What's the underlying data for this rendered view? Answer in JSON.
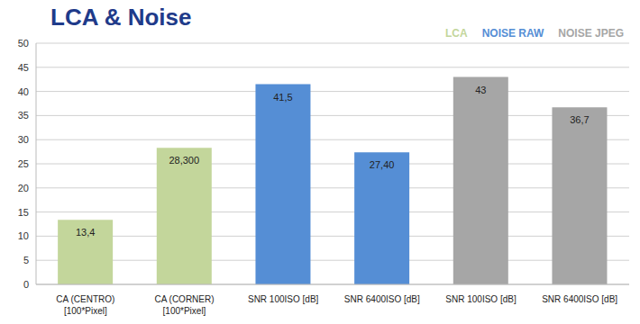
{
  "chart_data": {
    "type": "bar",
    "title": "LCA & Noise",
    "categories": [
      "CA (CENTRO)\n[100*Pixel]",
      "CA (CORNER)\n[100*Pixel]",
      "SNR 100ISO [dB]",
      "SNR 6400ISO [dB]",
      "SNR 100ISO [dB]",
      "SNR 6400ISO [dB]"
    ],
    "series": [
      {
        "name": "LCA",
        "color": "#c3d69b",
        "values": [
          13.4,
          28.3,
          null,
          null,
          null,
          null
        ],
        "value_labels": [
          "13,4",
          "28,300",
          null,
          null,
          null,
          null
        ]
      },
      {
        "name": "NOISE RAW",
        "color": "#558ed5",
        "values": [
          null,
          null,
          41.5,
          27.4,
          null,
          null
        ],
        "value_labels": [
          null,
          null,
          "41,5",
          "27,40",
          null,
          null
        ]
      },
      {
        "name": "NOISE JPEG",
        "color": "#a6a6a6",
        "values": [
          null,
          null,
          null,
          null,
          43,
          36.7
        ],
        "value_labels": [
          null,
          null,
          null,
          null,
          "43",
          "36,7"
        ]
      }
    ],
    "ylim": [
      0,
      50
    ],
    "yticks": [
      0,
      5,
      10,
      15,
      20,
      25,
      30,
      35,
      40,
      45,
      50
    ],
    "grid": true,
    "stacked": true,
    "data_labels": true,
    "legend": "top right"
  }
}
